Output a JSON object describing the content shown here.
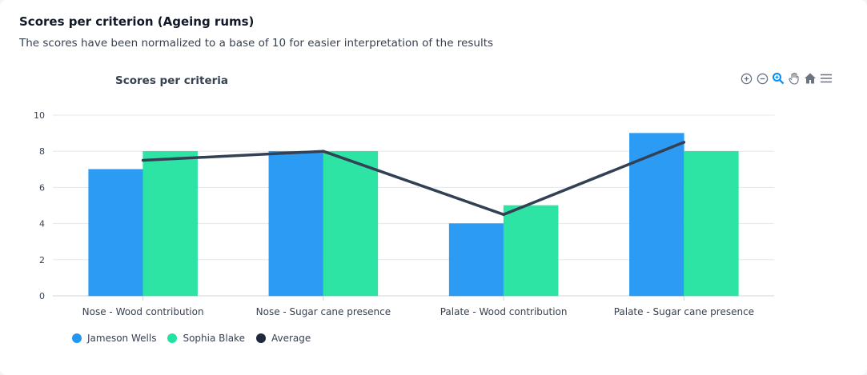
{
  "card": {
    "title": "Scores per criterion (Ageing rums)",
    "subtitle": "The scores have been normalized to a base of 10 for easier interpretation of the results"
  },
  "toolbar": {
    "icons": [
      "zoom-in-icon",
      "zoom-out-icon",
      "selection-zoom-icon",
      "pan-icon",
      "reset-zoom-icon",
      "menu-icon"
    ]
  },
  "colors": {
    "series1": "#2196f3",
    "series2": "#23e3a0",
    "average": "#334155",
    "grid": "#e5e7eb",
    "axis_text": "#374151"
  },
  "chart_data": {
    "type": "bar",
    "title": "Scores per criteria",
    "categories": [
      "Nose - Wood contribution",
      "Nose - Sugar cane presence",
      "Palate - Wood contribution",
      "Palate - Sugar cane presence"
    ],
    "series": [
      {
        "name": "Jameson Wells",
        "type": "bar",
        "values": [
          7,
          8,
          4,
          9
        ]
      },
      {
        "name": "Sophia Blake",
        "type": "bar",
        "values": [
          8,
          8,
          5,
          8
        ]
      },
      {
        "name": "Average",
        "type": "line",
        "values": [
          7.5,
          8,
          4.5,
          8.5
        ]
      }
    ],
    "ylim": [
      0,
      10
    ],
    "yticks": [
      0,
      2,
      4,
      6,
      8,
      10
    ],
    "grid": true,
    "legend_position": "bottom-left"
  }
}
